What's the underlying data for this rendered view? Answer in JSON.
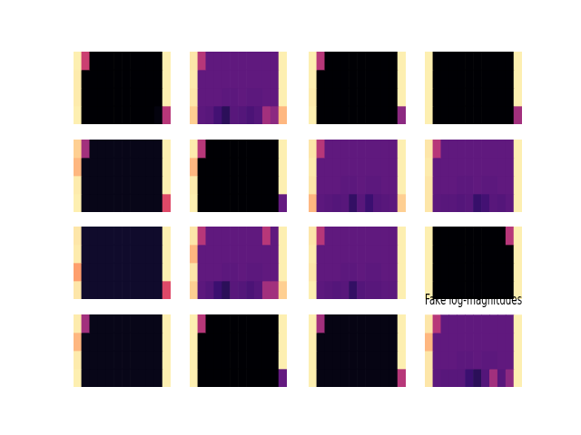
{
  "chart_data": [
    {
      "type": "heatmap",
      "zlim": [
        0,
        1
      ],
      "tick_labels": false,
      "cells": [
        [
          0.97,
          0.55,
          0,
          0,
          0,
          0,
          0,
          0,
          0,
          0,
          0,
          0.97
        ],
        [
          0.96,
          0,
          0,
          0,
          0,
          0,
          0,
          0,
          0,
          0,
          0,
          0.97
        ],
        [
          0.96,
          0,
          0,
          0,
          0,
          0,
          0,
          0,
          0,
          0,
          0,
          0.97
        ],
        [
          0.97,
          0,
          0,
          0,
          0,
          0,
          0,
          0,
          0,
          0,
          0.02,
          0.5
        ]
      ]
    },
    {
      "type": "heatmap",
      "zlim": [
        0,
        1
      ],
      "tick_labels": false,
      "cells": [
        [
          0.95,
          0.5,
          0.29,
          0.29,
          0.29,
          0.29,
          0.29,
          0.29,
          0.29,
          0.29,
          0.29,
          0.97
        ],
        [
          0.96,
          0.29,
          0.29,
          0.29,
          0.29,
          0.29,
          0.29,
          0.29,
          0.29,
          0.29,
          0.29,
          0.97
        ],
        [
          0.95,
          0.29,
          0.29,
          0.29,
          0.28,
          0.28,
          0.29,
          0.28,
          0.28,
          0.29,
          0.29,
          0.97
        ],
        [
          0.9,
          0.28,
          0.27,
          0.22,
          0.16,
          0.27,
          0.26,
          0.24,
          0.26,
          0.45,
          0.4,
          0.85
        ]
      ]
    },
    {
      "type": "heatmap",
      "zlim": [
        0,
        1
      ],
      "tick_labels": false,
      "cells": [
        [
          0.97,
          0.5,
          0,
          0,
          0,
          0,
          0,
          0,
          0,
          0,
          0,
          0.97
        ],
        [
          0.97,
          0,
          0,
          0,
          0,
          0,
          0,
          0,
          0,
          0,
          0,
          0.97
        ],
        [
          0.96,
          0,
          0,
          0,
          0,
          0,
          0,
          0,
          0,
          0,
          0,
          0.97
        ],
        [
          0.97,
          0,
          0,
          0,
          0,
          0,
          0,
          0,
          0,
          0,
          0,
          0.4
        ]
      ]
    },
    {
      "type": "heatmap",
      "zlim": [
        0,
        1
      ],
      "tick_labels": false,
      "cells": [
        [
          0.97,
          0,
          0,
          0,
          0,
          0,
          0,
          0,
          0,
          0,
          0,
          0.97
        ],
        [
          0.97,
          0,
          0,
          0,
          0,
          0,
          0,
          0,
          0,
          0,
          0,
          0.97
        ],
        [
          0.97,
          0,
          0,
          0,
          0,
          0,
          0,
          0,
          0,
          0,
          0,
          0.97
        ],
        [
          0.97,
          0,
          0,
          0,
          0,
          0,
          0,
          0,
          0,
          0,
          0,
          0.45
        ]
      ]
    },
    {
      "type": "heatmap",
      "zlim": [
        0,
        1
      ],
      "tick_labels": false,
      "cells": [
        [
          0.9,
          0.45,
          0.04,
          0.04,
          0.04,
          0.04,
          0.04,
          0.04,
          0.04,
          0.04,
          0.04,
          0.97
        ],
        [
          0.85,
          0.04,
          0.04,
          0.04,
          0.04,
          0.04,
          0.04,
          0.04,
          0.04,
          0.04,
          0.04,
          0.97
        ],
        [
          0.96,
          0.04,
          0.04,
          0.04,
          0.04,
          0.04,
          0.04,
          0.04,
          0.04,
          0.04,
          0.04,
          0.97
        ],
        [
          0.97,
          0.04,
          0.04,
          0.04,
          0.04,
          0.04,
          0.04,
          0.04,
          0.04,
          0.04,
          0.04,
          0.6
        ]
      ]
    },
    {
      "type": "heatmap",
      "zlim": [
        0,
        1
      ],
      "tick_labels": false,
      "cells": [
        [
          0.96,
          0.5,
          0,
          0,
          0,
          0,
          0,
          0,
          0,
          0,
          0,
          0.97
        ],
        [
          0.85,
          0,
          0,
          0,
          0,
          0,
          0,
          0,
          0,
          0,
          0,
          0.97
        ],
        [
          0.96,
          0,
          0,
          0,
          0,
          0,
          0,
          0,
          0,
          0,
          0,
          0.97
        ],
        [
          0.97,
          0,
          0,
          0,
          0,
          0,
          0,
          0,
          0,
          0,
          0,
          0.3
        ]
      ]
    },
    {
      "type": "heatmap",
      "zlim": [
        0,
        1
      ],
      "tick_labels": false,
      "cells": [
        [
          0.95,
          0.5,
          0.29,
          0.29,
          0.29,
          0.29,
          0.29,
          0.29,
          0.29,
          0.29,
          0.29,
          0.97
        ],
        [
          0.96,
          0.29,
          0.29,
          0.29,
          0.29,
          0.29,
          0.29,
          0.29,
          0.29,
          0.29,
          0.29,
          0.97
        ],
        [
          0.95,
          0.29,
          0.29,
          0.29,
          0.28,
          0.28,
          0.29,
          0.28,
          0.28,
          0.29,
          0.29,
          0.97
        ],
        [
          0.85,
          0.28,
          0.27,
          0.26,
          0.27,
          0.18,
          0.27,
          0.2,
          0.26,
          0.27,
          0.28,
          0.9
        ]
      ]
    },
    {
      "type": "heatmap",
      "zlim": [
        0,
        1
      ],
      "tick_labels": false,
      "cells": [
        [
          0.95,
          0.5,
          0.29,
          0.29,
          0.29,
          0.29,
          0.29,
          0.29,
          0.29,
          0.29,
          0.29,
          0.97
        ],
        [
          0.96,
          0.29,
          0.29,
          0.29,
          0.29,
          0.29,
          0.29,
          0.29,
          0.29,
          0.29,
          0.29,
          0.97
        ],
        [
          0.95,
          0.29,
          0.29,
          0.29,
          0.28,
          0.28,
          0.29,
          0.28,
          0.28,
          0.29,
          0.29,
          0.97
        ],
        [
          0.95,
          0.28,
          0.27,
          0.27,
          0.26,
          0.27,
          0.19,
          0.22,
          0.27,
          0.26,
          0.28,
          0.97
        ]
      ]
    },
    {
      "type": "heatmap",
      "zlim": [
        0,
        1
      ],
      "tick_labels": false,
      "cells": [
        [
          0.95,
          0.08,
          0.08,
          0.08,
          0.08,
          0.08,
          0.08,
          0.08,
          0.08,
          0.08,
          0.08,
          0.97
        ],
        [
          0.96,
          0.08,
          0.08,
          0.08,
          0.08,
          0.08,
          0.08,
          0.08,
          0.08,
          0.08,
          0.08,
          0.97
        ],
        [
          0.8,
          0.08,
          0.08,
          0.08,
          0.08,
          0.08,
          0.08,
          0.08,
          0.08,
          0.08,
          0.08,
          0.97
        ],
        [
          0.95,
          0.08,
          0.08,
          0.08,
          0.08,
          0.08,
          0.08,
          0.08,
          0.08,
          0.08,
          0.08,
          0.6
        ]
      ]
    },
    {
      "type": "heatmap",
      "zlim": [
        0,
        1
      ],
      "tick_labels": false,
      "cells": [
        [
          0.95,
          0.5,
          0.29,
          0.29,
          0.29,
          0.29,
          0.29,
          0.29,
          0.29,
          0.5,
          0.29,
          0.97
        ],
        [
          0.85,
          0.29,
          0.29,
          0.29,
          0.29,
          0.29,
          0.29,
          0.29,
          0.29,
          0.29,
          0.29,
          0.97
        ],
        [
          0.95,
          0.29,
          0.29,
          0.29,
          0.28,
          0.28,
          0.29,
          0.28,
          0.28,
          0.29,
          0.29,
          0.97
        ],
        [
          0.9,
          0.28,
          0.26,
          0.2,
          0.16,
          0.27,
          0.26,
          0.24,
          0.26,
          0.45,
          0.45,
          0.9
        ]
      ]
    },
    {
      "type": "heatmap",
      "zlim": [
        0,
        1
      ],
      "tick_labels": false,
      "cells": [
        [
          0.95,
          0.5,
          0.29,
          0.29,
          0.29,
          0.29,
          0.29,
          0.29,
          0.29,
          0.29,
          0.29,
          0.97
        ],
        [
          0.96,
          0.29,
          0.29,
          0.29,
          0.29,
          0.29,
          0.29,
          0.29,
          0.29,
          0.29,
          0.29,
          0.97
        ],
        [
          0.95,
          0.29,
          0.29,
          0.29,
          0.28,
          0.28,
          0.29,
          0.28,
          0.28,
          0.29,
          0.29,
          0.97
        ],
        [
          0.97,
          0.28,
          0.27,
          0.26,
          0.27,
          0.18,
          0.26,
          0.27,
          0.27,
          0.28,
          0.28,
          0.97
        ]
      ]
    },
    {
      "type": "heatmap",
      "zlim": [
        0,
        1
      ],
      "tick_labels": false,
      "cells": [
        [
          0.97,
          0,
          0,
          0,
          0,
          0,
          0,
          0,
          0,
          0,
          0.5,
          0.97
        ],
        [
          0.97,
          0,
          0,
          0,
          0,
          0,
          0,
          0,
          0,
          0,
          0,
          0.97
        ],
        [
          0.97,
          0,
          0,
          0,
          0,
          0,
          0,
          0,
          0,
          0,
          0,
          0.97
        ],
        [
          0.97,
          0,
          0,
          0,
          0,
          0,
          0,
          0,
          0,
          0,
          0,
          0.97
        ]
      ]
    },
    {
      "type": "heatmap",
      "zlim": [
        0,
        1
      ],
      "tick_labels": false,
      "cells": [
        [
          0.96,
          0.45,
          0.04,
          0.04,
          0.04,
          0.04,
          0.04,
          0.04,
          0.04,
          0.04,
          0.04,
          0.97
        ],
        [
          0.85,
          0.04,
          0.04,
          0.04,
          0.04,
          0.04,
          0.04,
          0.04,
          0.04,
          0.04,
          0.04,
          0.97
        ],
        [
          0.96,
          0.04,
          0.04,
          0.04,
          0.04,
          0.04,
          0.04,
          0.04,
          0.04,
          0.04,
          0.04,
          0.97
        ],
        [
          0.97,
          0.04,
          0.04,
          0.04,
          0.04,
          0.04,
          0.04,
          0.04,
          0.04,
          0.04,
          0.04,
          0.97
        ]
      ]
    },
    {
      "type": "heatmap",
      "zlim": [
        0,
        1
      ],
      "tick_labels": false,
      "cells": [
        [
          0.97,
          0.5,
          0,
          0,
          0,
          0,
          0,
          0,
          0,
          0,
          0,
          0.97
        ],
        [
          0.97,
          0,
          0,
          0,
          0,
          0,
          0,
          0,
          0,
          0,
          0,
          0.97
        ],
        [
          0.97,
          0,
          0,
          0,
          0,
          0,
          0,
          0,
          0,
          0,
          0,
          0.97
        ],
        [
          0.97,
          0,
          0,
          0,
          0,
          0,
          0,
          0,
          0,
          0,
          0,
          0.3
        ]
      ]
    },
    {
      "type": "heatmap",
      "zlim": [
        0,
        1
      ],
      "tick_labels": false,
      "cells": [
        [
          0.97,
          0.45,
          0.03,
          0.03,
          0.03,
          0.03,
          0.03,
          0.03,
          0.03,
          0.03,
          0.03,
          0.97
        ],
        [
          0.97,
          0.03,
          0.03,
          0.03,
          0.03,
          0.03,
          0.03,
          0.03,
          0.03,
          0.03,
          0.03,
          0.97
        ],
        [
          0.97,
          0.03,
          0.03,
          0.03,
          0.03,
          0.03,
          0.03,
          0.03,
          0.03,
          0.03,
          0.03,
          0.97
        ],
        [
          0.97,
          0.03,
          0.03,
          0.03,
          0.03,
          0.03,
          0.03,
          0.03,
          0.03,
          0.03,
          0.03,
          0.5
        ]
      ]
    },
    {
      "type": "heatmap",
      "title": "Fake log-magnitudes",
      "zlim": [
        0,
        1
      ],
      "tick_labels": false,
      "cells": [
        [
          0.95,
          0.5,
          0.29,
          0.29,
          0.29,
          0.29,
          0.29,
          0.29,
          0.29,
          0.29,
          0.29,
          0.97
        ],
        [
          0.85,
          0.29,
          0.29,
          0.29,
          0.29,
          0.29,
          0.29,
          0.29,
          0.29,
          0.29,
          0.29,
          0.97
        ],
        [
          0.95,
          0.29,
          0.29,
          0.29,
          0.28,
          0.28,
          0.29,
          0.28,
          0.28,
          0.29,
          0.29,
          0.97
        ],
        [
          0.95,
          0.28,
          0.27,
          0.27,
          0.27,
          0.2,
          0.16,
          0.26,
          0.45,
          0.27,
          0.4,
          0.97
        ]
      ]
    }
  ]
}
